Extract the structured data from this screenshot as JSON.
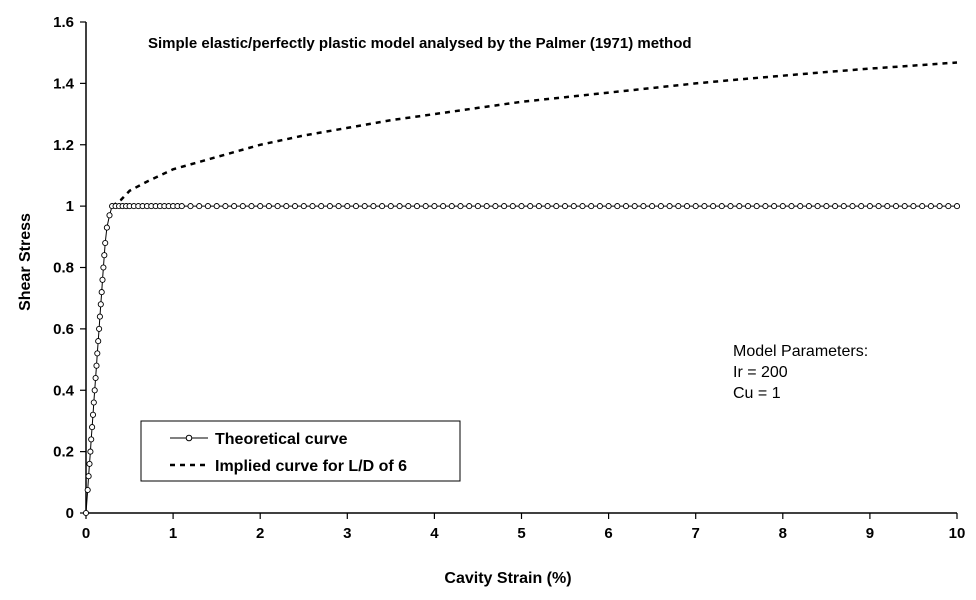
{
  "chart_data": {
    "type": "line",
    "title": "Simple elastic/perfectly plastic model analysed by the Palmer (1971) method",
    "xlabel": "Cavity Strain (%)",
    "ylabel": "Shear Stress",
    "xlim": [
      0,
      10
    ],
    "ylim": [
      0,
      1.6
    ],
    "xticks": [
      "0",
      "1",
      "2",
      "3",
      "4",
      "5",
      "6",
      "7",
      "8",
      "9",
      "10"
    ],
    "yticks": [
      "0",
      "0.2",
      "0.4",
      "0.6",
      "0.8",
      "1",
      "1.2",
      "1.4",
      "1.6"
    ],
    "grid": false,
    "legend_position": "bottom-left",
    "annotations": [
      "Model Parameters:",
      "Ir = 200",
      "Cu = 1"
    ],
    "series": [
      {
        "name": "Theoretical curve",
        "style": "solid-line-circle-markers",
        "color": "#000000",
        "points": [
          [
            0.0,
            0.0
          ],
          [
            0.02,
            0.075
          ],
          [
            0.03,
            0.12
          ],
          [
            0.04,
            0.16
          ],
          [
            0.05,
            0.2
          ],
          [
            0.06,
            0.24
          ],
          [
            0.07,
            0.28
          ],
          [
            0.08,
            0.32
          ],
          [
            0.09,
            0.36
          ],
          [
            0.1,
            0.4
          ],
          [
            0.11,
            0.44
          ],
          [
            0.12,
            0.48
          ],
          [
            0.13,
            0.52
          ],
          [
            0.14,
            0.56
          ],
          [
            0.15,
            0.6
          ],
          [
            0.16,
            0.64
          ],
          [
            0.17,
            0.68
          ],
          [
            0.18,
            0.72
          ],
          [
            0.19,
            0.76
          ],
          [
            0.2,
            0.8
          ],
          [
            0.21,
            0.84
          ],
          [
            0.22,
            0.88
          ],
          [
            0.24,
            0.93
          ],
          [
            0.27,
            0.97
          ],
          [
            0.3,
            1.0
          ],
          [
            0.34,
            1.0
          ],
          [
            0.38,
            1.0
          ],
          [
            0.42,
            1.0
          ],
          [
            0.46,
            1.0
          ],
          [
            0.5,
            1.0
          ],
          [
            0.55,
            1.0
          ],
          [
            0.6,
            1.0
          ],
          [
            0.65,
            1.0
          ],
          [
            0.7,
            1.0
          ],
          [
            0.75,
            1.0
          ],
          [
            0.8,
            1.0
          ],
          [
            0.85,
            1.0
          ],
          [
            0.9,
            1.0
          ],
          [
            0.95,
            1.0
          ],
          [
            1.0,
            1.0
          ],
          [
            1.05,
            1.0
          ],
          [
            1.1,
            1.0
          ],
          [
            1.2,
            1.0
          ],
          [
            1.3,
            1.0
          ],
          [
            1.4,
            1.0
          ],
          [
            1.5,
            1.0
          ],
          [
            1.6,
            1.0
          ],
          [
            1.7,
            1.0
          ],
          [
            1.8,
            1.0
          ],
          [
            1.9,
            1.0
          ],
          [
            2.0,
            1.0
          ],
          [
            2.1,
            1.0
          ],
          [
            2.2,
            1.0
          ],
          [
            2.3,
            1.0
          ],
          [
            2.4,
            1.0
          ],
          [
            2.5,
            1.0
          ],
          [
            2.6,
            1.0
          ],
          [
            2.7,
            1.0
          ],
          [
            2.8,
            1.0
          ],
          [
            2.9,
            1.0
          ],
          [
            3.0,
            1.0
          ],
          [
            3.1,
            1.0
          ],
          [
            3.2,
            1.0
          ],
          [
            3.3,
            1.0
          ],
          [
            3.4,
            1.0
          ],
          [
            3.5,
            1.0
          ],
          [
            3.6,
            1.0
          ],
          [
            3.7,
            1.0
          ],
          [
            3.8,
            1.0
          ],
          [
            3.9,
            1.0
          ],
          [
            4.0,
            1.0
          ],
          [
            4.1,
            1.0
          ],
          [
            4.2,
            1.0
          ],
          [
            4.3,
            1.0
          ],
          [
            4.4,
            1.0
          ],
          [
            4.5,
            1.0
          ],
          [
            4.6,
            1.0
          ],
          [
            4.7,
            1.0
          ],
          [
            4.8,
            1.0
          ],
          [
            4.9,
            1.0
          ],
          [
            5.0,
            1.0
          ],
          [
            5.1,
            1.0
          ],
          [
            5.2,
            1.0
          ],
          [
            5.3,
            1.0
          ],
          [
            5.4,
            1.0
          ],
          [
            5.5,
            1.0
          ],
          [
            5.6,
            1.0
          ],
          [
            5.7,
            1.0
          ],
          [
            5.8,
            1.0
          ],
          [
            5.9,
            1.0
          ],
          [
            6.0,
            1.0
          ],
          [
            6.1,
            1.0
          ],
          [
            6.2,
            1.0
          ],
          [
            6.3,
            1.0
          ],
          [
            6.4,
            1.0
          ],
          [
            6.5,
            1.0
          ],
          [
            6.6,
            1.0
          ],
          [
            6.7,
            1.0
          ],
          [
            6.8,
            1.0
          ],
          [
            6.9,
            1.0
          ],
          [
            7.0,
            1.0
          ],
          [
            7.1,
            1.0
          ],
          [
            7.2,
            1.0
          ],
          [
            7.3,
            1.0
          ],
          [
            7.4,
            1.0
          ],
          [
            7.5,
            1.0
          ],
          [
            7.6,
            1.0
          ],
          [
            7.7,
            1.0
          ],
          [
            7.8,
            1.0
          ],
          [
            7.9,
            1.0
          ],
          [
            8.0,
            1.0
          ],
          [
            8.1,
            1.0
          ],
          [
            8.2,
            1.0
          ],
          [
            8.3,
            1.0
          ],
          [
            8.4,
            1.0
          ],
          [
            8.5,
            1.0
          ],
          [
            8.6,
            1.0
          ],
          [
            8.7,
            1.0
          ],
          [
            8.8,
            1.0
          ],
          [
            8.9,
            1.0
          ],
          [
            9.0,
            1.0
          ],
          [
            9.1,
            1.0
          ],
          [
            9.2,
            1.0
          ],
          [
            9.3,
            1.0
          ],
          [
            9.4,
            1.0
          ],
          [
            9.5,
            1.0
          ],
          [
            9.6,
            1.0
          ],
          [
            9.7,
            1.0
          ],
          [
            9.8,
            1.0
          ],
          [
            9.9,
            1.0
          ],
          [
            10.0,
            1.0
          ]
        ]
      },
      {
        "name": "Implied curve for L/D of 6",
        "style": "dashed-line",
        "color": "#000000",
        "points": [
          [
            0.3,
            1.0
          ],
          [
            0.4,
            1.02
          ],
          [
            0.5,
            1.05
          ],
          [
            0.7,
            1.08
          ],
          [
            1.0,
            1.12
          ],
          [
            1.5,
            1.16
          ],
          [
            2.0,
            1.2
          ],
          [
            2.5,
            1.23
          ],
          [
            3.0,
            1.255
          ],
          [
            3.5,
            1.28
          ],
          [
            4.0,
            1.3
          ],
          [
            4.5,
            1.32
          ],
          [
            5.0,
            1.34
          ],
          [
            5.5,
            1.355
          ],
          [
            6.0,
            1.37
          ],
          [
            6.5,
            1.385
          ],
          [
            7.0,
            1.4
          ],
          [
            7.5,
            1.413
          ],
          [
            8.0,
            1.425
          ],
          [
            8.5,
            1.437
          ],
          [
            9.0,
            1.448
          ],
          [
            9.5,
            1.458
          ],
          [
            10.0,
            1.468
          ]
        ]
      }
    ]
  }
}
